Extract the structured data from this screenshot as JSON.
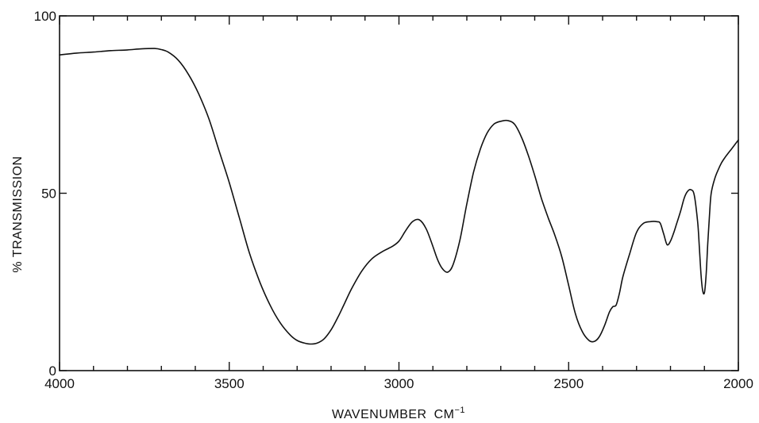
{
  "chart_data": {
    "type": "line",
    "title": "",
    "xlabel": "WAVENUMBER",
    "xunit": "CM",
    "xunit_exponent": "−1",
    "ylabel": "% TRANSMISSION",
    "xlim": [
      4000,
      2000
    ],
    "ylim": [
      0,
      100
    ],
    "x_reversed": true,
    "grid": false,
    "legend": "none",
    "x_ticks": [
      {
        "value": 4000,
        "label": "4000"
      },
      {
        "value": 3500,
        "label": "3500"
      },
      {
        "value": 3000,
        "label": "3000"
      },
      {
        "value": 2500,
        "label": "2500"
      },
      {
        "value": 2000,
        "label": "2000"
      }
    ],
    "y_ticks": [
      {
        "value": 100,
        "label": "100"
      },
      {
        "value": 50,
        "label": "50"
      },
      {
        "value": 0,
        "label": "0"
      }
    ],
    "line_color": "#111111",
    "series": [
      {
        "x": [
          4000,
          3950,
          3900,
          3850,
          3800,
          3760,
          3720,
          3700,
          3680,
          3650,
          3620,
          3590,
          3560,
          3530,
          3500,
          3470,
          3440,
          3410,
          3380,
          3350,
          3320,
          3300,
          3280,
          3260,
          3240,
          3220,
          3200,
          3180,
          3160,
          3140,
          3110,
          3080,
          3050,
          3020,
          3000,
          2980,
          2960,
          2940,
          2920,
          2900,
          2885,
          2870,
          2855,
          2840,
          2820,
          2800,
          2780,
          2760,
          2740,
          2720,
          2700,
          2680,
          2660,
          2640,
          2620,
          2600,
          2580,
          2560,
          2540,
          2520,
          2500,
          2480,
          2460,
          2440,
          2425,
          2410,
          2395,
          2380,
          2370,
          2360,
          2350,
          2340,
          2320,
          2300,
          2280,
          2260,
          2240,
          2230,
          2220,
          2210,
          2200,
          2190,
          2180,
          2170,
          2160,
          2150,
          2140,
          2130,
          2120,
          2115,
          2110,
          2105,
          2100,
          2095,
          2090,
          2085,
          2080,
          2070,
          2060,
          2050,
          2040,
          2020,
          2000
        ],
        "y": [
          89,
          89.5,
          89.8,
          90.2,
          90.4,
          90.7,
          90.8,
          90.5,
          89.8,
          87.5,
          83.5,
          78,
          71,
          62,
          53,
          43,
          33,
          25,
          18.5,
          13.5,
          10,
          8.5,
          7.8,
          7.5,
          7.8,
          9,
          11.5,
          15,
          19,
          23,
          28,
          31.5,
          33.5,
          35,
          36.5,
          39.5,
          42,
          42.5,
          40,
          35,
          31,
          28.5,
          27.8,
          30,
          37,
          47,
          56,
          62.5,
          67,
          69.5,
          70.3,
          70.5,
          69.5,
          66,
          61,
          55,
          48.5,
          43,
          38,
          32,
          24,
          16,
          11,
          8.5,
          8.2,
          9.5,
          12.5,
          16.5,
          18,
          18.5,
          22,
          26.5,
          33,
          39,
          41.5,
          42,
          42,
          41.5,
          38.5,
          35.5,
          36.5,
          39,
          42,
          45,
          48.5,
          50.5,
          51,
          49.5,
          42,
          35,
          27,
          22.5,
          22,
          27,
          36,
          44,
          50,
          54,
          56.5,
          58.5,
          60,
          62.5,
          65
        ]
      }
    ]
  }
}
